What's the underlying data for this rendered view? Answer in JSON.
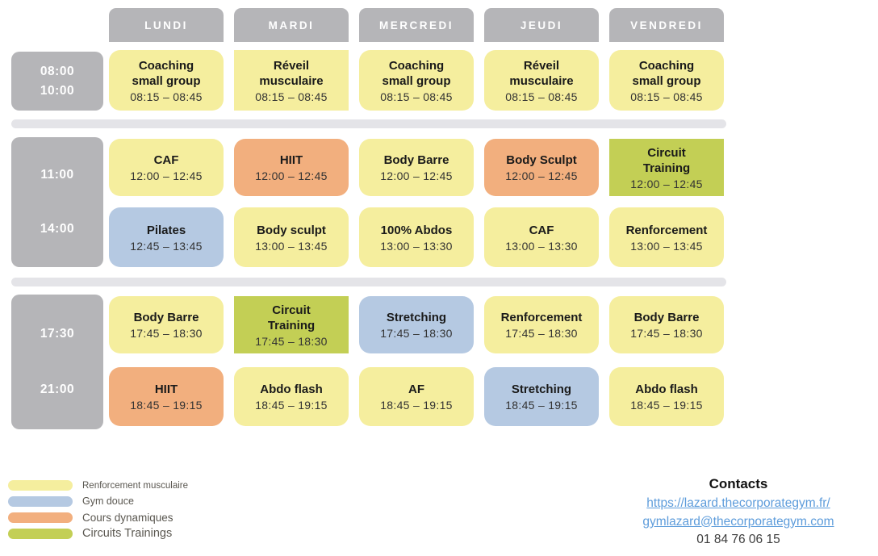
{
  "days": [
    "LUNDI",
    "MARDI",
    "MERCREDI",
    "JEUDI",
    "VENDREDI"
  ],
  "colors": {
    "yellow": "#F5EE9E",
    "blue": "#B5C9E2",
    "orange": "#F2AF7E",
    "green": "#C3CF55",
    "header_gray": "#B5B5B8",
    "divider_gray": "#E4E4E8",
    "link_blue": "#5D9CDB"
  },
  "schedule": {
    "bands": [
      {
        "times": [
          "08:00",
          "10:00"
        ],
        "rows": [
          [
            {
              "title": "Coaching\nsmall group",
              "time": "08:15 – 08:45",
              "category": "yellow"
            },
            {
              "title": "Réveil\nmusculaire",
              "time": "08:15 – 08:45",
              "category": "yellow",
              "square": true
            },
            {
              "title": "Coaching\nsmall group",
              "time": "08:15 – 08:45",
              "category": "yellow"
            },
            {
              "title": "Réveil\nmusculaire",
              "time": "08:15 – 08:45",
              "category": "yellow"
            },
            {
              "title": "Coaching\nsmall group",
              "time": "08:15 – 08:45",
              "category": "yellow"
            }
          ]
        ]
      },
      {
        "times": [
          "11:00",
          "14:00"
        ],
        "rows": [
          [
            {
              "title": "CAF",
              "time": "12:00 – 12:45",
              "category": "yellow"
            },
            {
              "title": "HIIT",
              "time": "12:00 – 12:45",
              "category": "orange"
            },
            {
              "title": "Body Barre",
              "time": "12:00 – 12:45",
              "category": "yellow"
            },
            {
              "title": "Body Sculpt",
              "time": "12:00 – 12:45",
              "category": "orange"
            },
            {
              "title": "Circuit\nTraining",
              "time": "12:00 – 12:45",
              "category": "green",
              "square": true
            }
          ],
          [
            {
              "title": "Pilates",
              "time": "12:45 – 13:45",
              "category": "blue"
            },
            {
              "title": "Body sculpt",
              "time": "13:00 – 13:45",
              "category": "yellow"
            },
            {
              "title": "100% Abdos",
              "time": "13:00 – 13:30",
              "category": "yellow"
            },
            {
              "title": "CAF",
              "time": "13:00 – 13:30",
              "category": "yellow"
            },
            {
              "title": "Renforcement",
              "time": "13:00 – 13:45",
              "category": "yellow"
            }
          ]
        ]
      },
      {
        "times": [
          "17:30",
          "21:00"
        ],
        "rows": [
          [
            {
              "title": "Body Barre",
              "time": "17:45 – 18:30",
              "category": "yellow"
            },
            {
              "title": "Circuit\nTraining",
              "time": "17:45 – 18:30",
              "category": "green",
              "square": true
            },
            {
              "title": "Stretching",
              "time": "17:45 – 18:30",
              "category": "blue"
            },
            {
              "title": "Renforcement",
              "time": "17:45 – 18:30",
              "category": "yellow"
            },
            {
              "title": "Body Barre",
              "time": "17:45 – 18:30",
              "category": "yellow"
            }
          ],
          [
            {
              "title": "HIIT",
              "time": "18:45 – 19:15",
              "category": "orange"
            },
            {
              "title": "Abdo flash",
              "time": "18:45 – 19:15",
              "category": "yellow"
            },
            {
              "title": "AF",
              "time": "18:45 – 19:15",
              "category": "yellow"
            },
            {
              "title": "Stretching",
              "time": "18:45 – 19:15",
              "category": "blue"
            },
            {
              "title": "Abdo flash",
              "time": "18:45 – 19:15",
              "category": "yellow"
            }
          ]
        ]
      }
    ]
  },
  "legend": [
    {
      "label": "Renforcement musculaire",
      "category": "yellow"
    },
    {
      "label": "Gym douce",
      "category": "blue"
    },
    {
      "label": "Cours dynamiques",
      "category": "orange"
    },
    {
      "label": "Circuits Trainings",
      "category": "green"
    }
  ],
  "contacts": {
    "title": "Contacts",
    "website": "https://lazard.thecorporategym.fr/",
    "email": "gymlazard@thecorporategym.com",
    "phone": "01 84 76 06 15"
  }
}
